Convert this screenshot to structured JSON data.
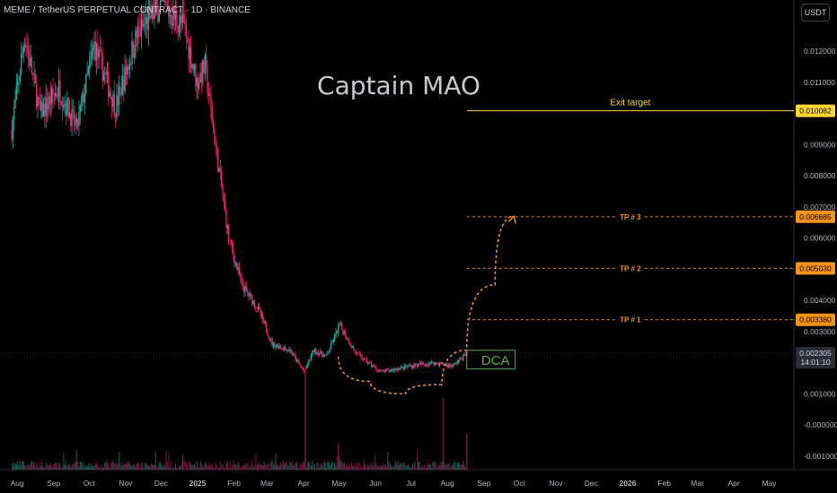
{
  "header": {
    "symbol_line": "MEME / TetherUS PERPETUAL CONTRACT · 1D · BINANCE"
  },
  "unit_button": "USDT",
  "colors": {
    "up": "#26a69a",
    "down": "#e91e63",
    "accent": "#f7931a",
    "exit": "#fdd835",
    "dca": "#4caf50",
    "axis_text": "#b2b5be"
  },
  "chart_data": {
    "type": "candlestick",
    "title": "Captain MAO",
    "symbol": "MEME / TetherUS PERPETUAL CONTRACT · 1D · BINANCE",
    "y_axis": {
      "ticks": [
        "0.012000",
        "0.011000",
        "0.010000",
        "0.009000",
        "0.008000",
        "0.007000",
        "0.006000",
        "0.005000",
        "0.004000",
        "0.003000",
        "0.001000",
        "-0.000000",
        "-0.001000"
      ],
      "range": [
        -0.0013,
        0.0135
      ]
    },
    "x_axis": {
      "ticks": [
        "Aug",
        "Sep",
        "Oct",
        "Nov",
        "Dec",
        "2025",
        "Feb",
        "Mar",
        "Apr",
        "May",
        "Jun",
        "Jul",
        "Aug",
        "Sep",
        "Oct",
        "Nov",
        "Dec",
        "2026",
        "Feb",
        "Mar",
        "Apr",
        "May"
      ]
    },
    "price_path": [
      [
        "2024-08-01",
        0.0095
      ],
      [
        "2024-08-12",
        0.0125
      ],
      [
        "2024-08-25",
        0.01
      ],
      [
        "2024-09-10",
        0.0108
      ],
      [
        "2024-09-25",
        0.0095
      ],
      [
        "2024-10-10",
        0.0122
      ],
      [
        "2024-10-28",
        0.0102
      ],
      [
        "2024-11-15",
        0.0125
      ],
      [
        "2024-12-05",
        0.0135
      ],
      [
        "2024-12-25",
        0.0128
      ],
      [
        "2025-01-05",
        0.011
      ],
      [
        "2025-01-12",
        0.0115
      ],
      [
        "2025-01-20",
        0.0092
      ],
      [
        "2025-02-01",
        0.006
      ],
      [
        "2025-02-12",
        0.0045
      ],
      [
        "2025-02-25",
        0.0038
      ],
      [
        "2025-03-10",
        0.0026
      ],
      [
        "2025-03-25",
        0.0024
      ],
      [
        "2025-04-06",
        0.0017
      ],
      [
        "2025-04-14",
        0.0024
      ],
      [
        "2025-04-25",
        0.0022
      ],
      [
        "2025-05-06",
        0.0032
      ],
      [
        "2025-05-20",
        0.0023
      ],
      [
        "2025-06-10",
        0.0017
      ],
      [
        "2025-07-05",
        0.0019
      ],
      [
        "2025-07-25",
        0.002
      ],
      [
        "2025-08-10",
        0.0019
      ],
      [
        "2025-08-22",
        0.0023
      ]
    ],
    "levels": [
      {
        "label": "Exit target",
        "value": 0.010082,
        "price_tag": "0.010082",
        "style": "solid"
      },
      {
        "label": "TP # 3",
        "value": 0.006685,
        "price_tag": "0.006685",
        "style": "dashed"
      },
      {
        "label": "TP # 2",
        "value": 0.00503,
        "price_tag": "0.005030",
        "style": "dashed"
      },
      {
        "label": "TP # 1",
        "value": 0.00338,
        "price_tag": "0.003380",
        "style": "dashed"
      }
    ],
    "dca_zone": {
      "label": "DCA",
      "low": 0.0018,
      "high": 0.0024,
      "start": "2025-08-22",
      "end": "2025-10-02"
    },
    "current_price": {
      "price": "0.002305",
      "countdown": "14:01:10",
      "value": 0.002305
    },
    "projection": [
      [
        "2025-05-05",
        0.0022
      ],
      [
        "2025-06-01",
        0.0014
      ],
      [
        "2025-07-01",
        0.001
      ],
      [
        "2025-08-01",
        0.0013
      ],
      [
        "2025-08-22",
        0.0024
      ],
      [
        "2025-09-15",
        0.0045
      ],
      [
        "2025-10-01",
        0.0067
      ]
    ]
  }
}
